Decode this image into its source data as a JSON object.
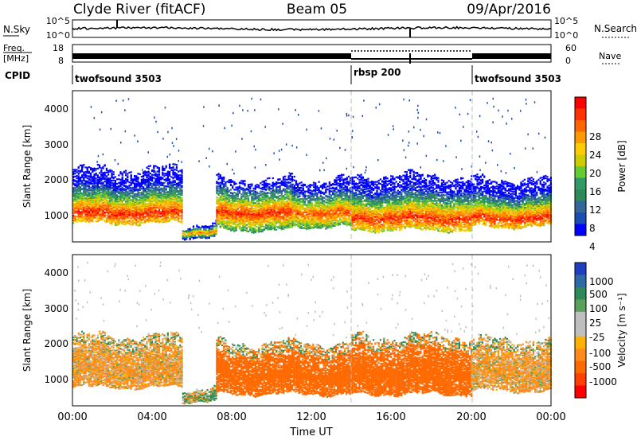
{
  "header": {
    "station": "Clyde River (fitACF)",
    "beam": "Beam 05",
    "date": "09/Apr/2016"
  },
  "noise_panel": {
    "left_label": "N.Sky",
    "right_label": "N.Search",
    "y_ticks": [
      "10^5",
      "10^0"
    ]
  },
  "freq_panel": {
    "left_label_top": "Freq.",
    "left_label_bottom": "[MHz]",
    "left_ticks": [
      "18",
      "8"
    ],
    "right_label": "Nave",
    "right_ticks": [
      "60",
      "0"
    ]
  },
  "cpid_panel": {
    "label": "CPID",
    "segments": [
      {
        "name": "twofsound 3503",
        "start_hour": 0,
        "end_hour": 14
      },
      {
        "name": "rbsp 200",
        "start_hour": 14,
        "end_hour": 20
      },
      {
        "name": "twofsound 3503",
        "start_hour": 20,
        "end_hour": 24
      }
    ]
  },
  "power_panel": {
    "ylabel": "Slant Range [km]",
    "y_ticks": [
      "4000",
      "3000",
      "2000",
      "1000"
    ],
    "colorbar_label": "Power [dB]",
    "colorbar_ticks": [
      "28",
      "24",
      "20",
      "16",
      "12",
      "8",
      "4"
    ],
    "colorbar_colors": [
      "#ff0000",
      "#ff3300",
      "#ff6600",
      "#ff9900",
      "#ffcc00",
      "#cccc00",
      "#66cc33",
      "#339966",
      "#2e8b57",
      "#336699",
      "#1a4db3",
      "#0000ff"
    ]
  },
  "velocity_panel": {
    "ylabel": "Slant Range [km]",
    "y_ticks": [
      "4000",
      "3000",
      "2000",
      "1000"
    ],
    "colorbar_label": "Velocity [m s⁻¹]",
    "colorbar_ticks": [
      "1000",
      "500",
      "100",
      "25",
      "-25",
      "-100",
      "-500",
      "-1000"
    ],
    "colorbar_colors": [
      "#1f3fbf",
      "#2e6aa8",
      "#2e8b57",
      "#5aa05a",
      "#bfbfbf",
      "#bfbfbf",
      "#ffb000",
      "#ff8c1a",
      "#ff6a00",
      "#ff4000",
      "#ff0000"
    ]
  },
  "xaxis": {
    "label": "Time UT",
    "ticks": [
      "00:00",
      "04:00",
      "08:00",
      "12:00",
      "16:00",
      "20:00",
      "00:00"
    ]
  },
  "chart_data": [
    {
      "type": "heatmap",
      "title": "Power",
      "xlabel": "Time UT",
      "ylabel": "Slant Range [km]",
      "xlim_hours": [
        0,
        24
      ],
      "ylim": [
        180,
        4600
      ],
      "colorbar": {
        "label": "Power [dB]",
        "range": [
          0,
          30
        ],
        "ticks": [
          4,
          8,
          12,
          16,
          20,
          24,
          28
        ]
      },
      "bands": [
        {
          "t_start": 0.0,
          "t_end": 5.5,
          "r_low": 700,
          "r_high": 2300,
          "r_core": 1000,
          "peak_db": 28
        },
        {
          "t_start": 5.5,
          "t_end": 7.2,
          "r_low": 300,
          "r_high": 700,
          "r_core": 450,
          "peak_db": 24
        },
        {
          "t_start": 7.2,
          "t_end": 11.0,
          "r_low": 500,
          "r_high": 2000,
          "r_core": 1000,
          "peak_db": 28
        },
        {
          "t_start": 11.0,
          "t_end": 14.0,
          "r_low": 600,
          "r_high": 2000,
          "r_core": 1000,
          "peak_db": 26
        },
        {
          "t_start": 14.0,
          "t_end": 20.0,
          "r_low": 500,
          "r_high": 2100,
          "r_core": 850,
          "peak_db": 28
        },
        {
          "t_start": 20.0,
          "t_end": 24.0,
          "r_low": 600,
          "r_high": 2000,
          "r_core": 850,
          "peak_db": 28
        }
      ]
    },
    {
      "type": "heatmap",
      "title": "Velocity",
      "xlabel": "Time UT",
      "ylabel": "Slant Range [km]",
      "xlim_hours": [
        0,
        24
      ],
      "ylim": [
        180,
        4600
      ],
      "colorbar": {
        "label": "Velocity [m s⁻¹]",
        "range": [
          -1000,
          1000
        ],
        "ticks": [
          1000,
          500,
          100,
          25,
          -25,
          -100,
          -500,
          -1000
        ]
      },
      "bands": [
        {
          "t_start": 0.0,
          "t_end": 5.5,
          "r_low": 700,
          "r_high": 2200,
          "dominant_velocity": -100
        },
        {
          "t_start": 5.5,
          "t_end": 7.2,
          "r_low": 300,
          "r_high": 700,
          "dominant_velocity": 100
        },
        {
          "t_start": 7.2,
          "t_end": 14.0,
          "r_low": 500,
          "r_high": 2000,
          "dominant_velocity": -500
        },
        {
          "t_start": 14.0,
          "t_end": 20.0,
          "r_low": 500,
          "r_high": 2200,
          "dominant_velocity": -500
        },
        {
          "t_start": 20.0,
          "t_end": 24.0,
          "r_low": 600,
          "r_high": 2100,
          "dominant_velocity": -100
        }
      ]
    }
  ]
}
